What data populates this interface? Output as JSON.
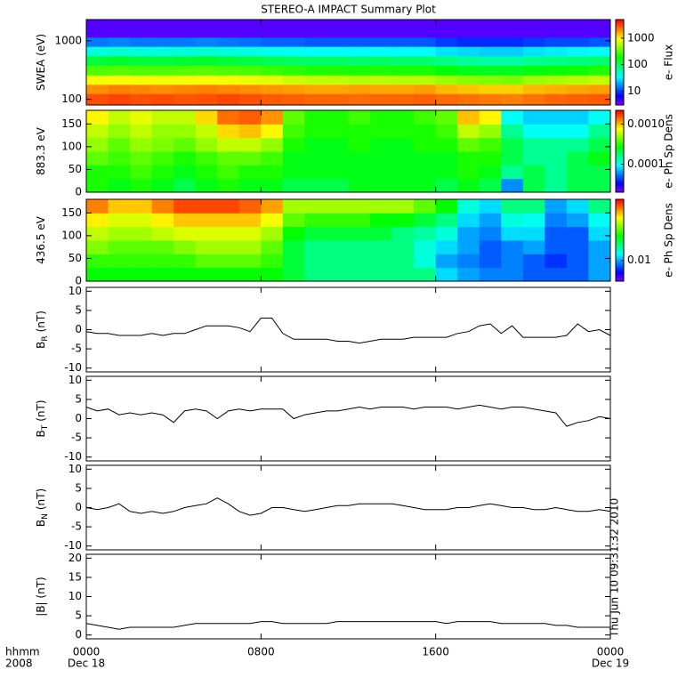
{
  "chart_data": [
    {
      "type": "heatmap",
      "title": "STEREO-A IMPACT Summary Plot",
      "ylabel": "SWEA (eV)",
      "yscale": "log",
      "ylim": [
        80,
        2300
      ],
      "yticks": [
        100,
        1000
      ],
      "xlim": [
        0,
        24
      ],
      "x_bins": [
        0,
        1,
        2,
        3,
        4,
        5,
        6,
        7,
        8,
        9,
        10,
        11,
        12,
        13,
        14,
        15,
        16,
        17,
        18,
        19,
        20,
        21,
        22,
        23,
        24
      ],
      "y_bins": [
        80,
        125,
        180,
        260,
        380,
        550,
        800,
        1150,
        2300
      ],
      "values": [
        [
          3000,
          3200,
          3000,
          3100,
          2900,
          3000,
          3200,
          3000,
          2800,
          2700,
          2600,
          2600,
          2500,
          2600,
          2600,
          2700,
          2500,
          2400,
          2300,
          2200,
          2400,
          2600,
          2700,
          2800
        ],
        [
          2000,
          2200,
          2100,
          2000,
          2100,
          2200,
          2100,
          2000,
          1900,
          1800,
          1700,
          1700,
          1800,
          1700,
          1700,
          1800,
          1500,
          1400,
          1300,
          1300,
          1500,
          1600,
          1700,
          1800
        ],
        [
          900,
          950,
          900,
          880,
          900,
          950,
          900,
          850,
          800,
          700,
          650,
          650,
          600,
          620,
          600,
          600,
          500,
          450,
          420,
          400,
          500,
          550,
          600,
          650
        ],
        [
          300,
          320,
          300,
          300,
          310,
          320,
          300,
          290,
          260,
          240,
          220,
          220,
          210,
          220,
          210,
          210,
          180,
          160,
          150,
          150,
          170,
          190,
          200,
          220
        ],
        [
          130,
          140,
          130,
          130,
          135,
          140,
          130,
          120,
          110,
          100,
          95,
          95,
          90,
          95,
          90,
          90,
          80,
          70,
          65,
          65,
          75,
          80,
          85,
          90
        ],
        [
          45,
          48,
          45,
          45,
          46,
          48,
          45,
          42,
          40,
          38,
          36,
          36,
          35,
          36,
          35,
          35,
          30,
          28,
          26,
          26,
          30,
          32,
          34,
          35
        ],
        [
          15,
          16,
          15,
          15,
          15,
          16,
          15,
          14,
          13,
          13,
          12,
          12,
          12,
          12,
          12,
          12,
          10,
          9,
          9,
          9,
          10,
          11,
          11,
          12
        ],
        [
          4,
          4,
          4,
          4,
          4,
          4,
          4,
          4,
          4,
          4,
          4,
          4,
          4,
          4,
          4,
          4,
          4,
          4,
          4,
          4,
          4,
          4,
          4,
          4
        ]
      ],
      "zscale": "log",
      "zlim": [
        3,
        5000
      ],
      "zticks": [
        10,
        100,
        1000
      ],
      "zlabel": "e- Flux",
      "colormap": "rainbow"
    },
    {
      "type": "heatmap",
      "ylabel": "883.3 eV",
      "yscale": "linear",
      "ylim": [
        0,
        180
      ],
      "yticks": [
        0,
        50,
        100,
        150
      ],
      "xlim": [
        0,
        24
      ],
      "x_bins": [
        0,
        1,
        2,
        3,
        4,
        5,
        6,
        7,
        8,
        9,
        10,
        11,
        12,
        13,
        14,
        15,
        16,
        17,
        18,
        19,
        20,
        21,
        22,
        23,
        24
      ],
      "y_bins": [
        0,
        30,
        60,
        90,
        120,
        150,
        180
      ],
      "values": [
        [
          0.0003,
          0.00025,
          0.0003,
          0.00025,
          0.0002,
          0.00025,
          0.0003,
          0.00025,
          0.00025,
          0.0002,
          0.0002,
          0.0002,
          0.00025,
          0.00025,
          0.00025,
          0.00025,
          0.0002,
          0.00025,
          0.0002,
          6e-05,
          0.0002,
          0.00015,
          0.0002,
          0.0002
        ],
        [
          0.0003,
          0.0003,
          0.00035,
          0.0003,
          0.00025,
          0.0003,
          0.00035,
          0.0003,
          0.0003,
          0.00025,
          0.00025,
          0.00025,
          0.00025,
          0.00025,
          0.00025,
          0.00025,
          0.00025,
          0.0003,
          0.00025,
          0.00015,
          0.0002,
          0.00015,
          0.0002,
          0.0002
        ],
        [
          0.0004,
          0.00035,
          0.0004,
          0.00035,
          0.0003,
          0.00035,
          0.0004,
          0.0004,
          0.00035,
          0.00025,
          0.00025,
          0.00025,
          0.00025,
          0.00025,
          0.00025,
          0.00025,
          0.00025,
          0.0003,
          0.0003,
          0.0002,
          0.00015,
          0.00015,
          0.0002,
          0.00025
        ],
        [
          0.0005,
          0.0004,
          0.0005,
          0.00045,
          0.0004,
          0.0005,
          0.0006,
          0.0006,
          0.0005,
          0.0003,
          0.00025,
          0.00025,
          0.0003,
          0.00025,
          0.00025,
          0.0003,
          0.0003,
          0.0004,
          0.00035,
          0.0002,
          0.00015,
          0.00015,
          0.00015,
          0.0002
        ],
        [
          0.0006,
          0.0005,
          0.0006,
          0.0005,
          0.0005,
          0.0006,
          0.0009,
          0.001,
          0.0008,
          0.00035,
          0.0003,
          0.0003,
          0.0003,
          0.0003,
          0.0003,
          0.0003,
          0.00035,
          0.0006,
          0.0005,
          0.00015,
          0.0001,
          0.0001,
          0.0001,
          0.00015
        ],
        [
          0.0008,
          0.0006,
          0.0007,
          0.0006,
          0.0006,
          0.0009,
          0.0014,
          0.0015,
          0.0012,
          0.0004,
          0.0003,
          0.0003,
          0.00035,
          0.0003,
          0.0003,
          0.00035,
          0.0004,
          0.001,
          0.0008,
          0.0001,
          8e-05,
          8e-05,
          8e-05,
          0.0001
        ]
      ],
      "zscale": "log",
      "zlim": [
        2e-05,
        0.0022
      ],
      "zticks": [
        {
          "value": 0.001,
          "label": "0.0010"
        },
        0.0001
      ],
      "zlabel": "e- Ph Sp Dens",
      "colormap": "rainbow"
    },
    {
      "type": "heatmap",
      "ylabel": "436.5 eV",
      "yscale": "linear",
      "ylim": [
        0,
        180
      ],
      "yticks": [
        0,
        50,
        100,
        150
      ],
      "xlim": [
        0,
        24
      ],
      "x_bins": [
        0,
        1,
        2,
        3,
        4,
        5,
        6,
        7,
        8,
        9,
        10,
        11,
        12,
        13,
        14,
        15,
        16,
        17,
        18,
        19,
        20,
        21,
        22,
        23,
        24
      ],
      "y_bins": [
        0,
        30,
        60,
        90,
        120,
        150,
        180
      ],
      "values": [
        [
          0.03,
          0.03,
          0.03,
          0.03,
          0.03,
          0.03,
          0.03,
          0.03,
          0.03,
          0.025,
          0.02,
          0.02,
          0.02,
          0.02,
          0.02,
          0.02,
          0.012,
          0.01,
          0.009,
          0.009,
          0.008,
          0.008,
          0.008,
          0.01
        ],
        [
          0.035,
          0.035,
          0.035,
          0.035,
          0.035,
          0.04,
          0.04,
          0.04,
          0.035,
          0.025,
          0.02,
          0.02,
          0.02,
          0.02,
          0.02,
          0.015,
          0.01,
          0.009,
          0.008,
          0.009,
          0.008,
          0.007,
          0.008,
          0.01
        ],
        [
          0.045,
          0.04,
          0.04,
          0.04,
          0.045,
          0.05,
          0.05,
          0.05,
          0.04,
          0.025,
          0.02,
          0.02,
          0.02,
          0.02,
          0.02,
          0.015,
          0.012,
          0.01,
          0.008,
          0.009,
          0.01,
          0.008,
          0.008,
          0.01
        ],
        [
          0.055,
          0.05,
          0.05,
          0.055,
          0.06,
          0.06,
          0.06,
          0.06,
          0.05,
          0.03,
          0.025,
          0.025,
          0.025,
          0.025,
          0.02,
          0.018,
          0.015,
          0.01,
          0.009,
          0.012,
          0.012,
          0.008,
          0.008,
          0.012
        ],
        [
          0.07,
          0.06,
          0.06,
          0.07,
          0.08,
          0.08,
          0.08,
          0.08,
          0.065,
          0.04,
          0.035,
          0.035,
          0.035,
          0.03,
          0.03,
          0.025,
          0.02,
          0.012,
          0.01,
          0.015,
          0.014,
          0.009,
          0.01,
          0.014
        ],
        [
          0.1,
          0.08,
          0.08,
          0.1,
          0.12,
          0.12,
          0.12,
          0.11,
          0.09,
          0.05,
          0.05,
          0.05,
          0.05,
          0.05,
          0.05,
          0.04,
          0.03,
          0.015,
          0.012,
          0.02,
          0.02,
          0.01,
          0.012,
          0.02
        ]
      ],
      "zscale": "log",
      "zlim": [
        0.004,
        0.15
      ],
      "zticks": [
        0.01
      ],
      "zlabel": "e- Ph Sp Dens",
      "colormap": "rainbow"
    },
    {
      "type": "line",
      "ylabel": "B",
      "ylabel_sub": "R",
      "ylabel_unit": "(nT)",
      "ylim": [
        -11,
        11
      ],
      "yticks": [
        -10,
        -5,
        0,
        5,
        10
      ],
      "xlim": [
        0,
        24
      ],
      "color": "#000000",
      "x": [
        0,
        0.5,
        1,
        1.5,
        2,
        2.5,
        3,
        3.5,
        4,
        4.5,
        5,
        5.5,
        6,
        6.5,
        7,
        7.5,
        8,
        8.5,
        9,
        9.5,
        10,
        10.5,
        11,
        11.5,
        12,
        12.5,
        13,
        13.5,
        14,
        14.5,
        15,
        15.5,
        16,
        16.5,
        17,
        17.5,
        18,
        18.5,
        19,
        19.5,
        20,
        20.5,
        21,
        21.5,
        22,
        22.5,
        23,
        23.5,
        24
      ],
      "values": [
        -0.5,
        -1,
        -1,
        -1.5,
        -1.5,
        -1.5,
        -1,
        -1.5,
        -1,
        -1,
        0,
        1,
        1,
        1,
        0.5,
        -0.5,
        3,
        3,
        -1,
        -2.5,
        -2.5,
        -2.5,
        -2.5,
        -3,
        -3,
        -3.5,
        -3,
        -2.5,
        -2.5,
        -2.5,
        -2,
        -2,
        -2,
        -2,
        -1,
        -0.5,
        1,
        1.5,
        -1,
        1,
        -2,
        -2,
        -2,
        -2,
        -1.5,
        1.5,
        -0.5,
        0,
        -1.5
      ]
    },
    {
      "type": "line",
      "ylabel": "B",
      "ylabel_sub": "T",
      "ylabel_unit": "(nT)",
      "ylim": [
        -11,
        11
      ],
      "yticks": [
        -10,
        -5,
        0,
        5,
        10
      ],
      "xlim": [
        0,
        24
      ],
      "color": "#000000",
      "x": [
        0,
        0.5,
        1,
        1.5,
        2,
        2.5,
        3,
        3.5,
        4,
        4.5,
        5,
        5.5,
        6,
        6.5,
        7,
        7.5,
        8,
        8.5,
        9,
        9.5,
        10,
        10.5,
        11,
        11.5,
        12,
        12.5,
        13,
        13.5,
        14,
        14.5,
        15,
        15.5,
        16,
        16.5,
        17,
        17.5,
        18,
        18.5,
        19,
        19.5,
        20,
        20.5,
        21,
        21.5,
        22,
        22.5,
        23,
        23.5,
        24
      ],
      "values": [
        3,
        2,
        2.5,
        1,
        1.5,
        1,
        1.5,
        1,
        -1,
        2,
        2.5,
        2,
        0,
        2,
        2.5,
        2,
        2.5,
        2.5,
        2.5,
        0,
        1,
        1.5,
        2,
        2,
        2.5,
        3,
        2.5,
        3,
        3,
        3,
        2.5,
        3,
        3,
        3,
        2.5,
        3,
        3.5,
        3,
        2.5,
        3,
        3,
        2.5,
        2,
        1.5,
        -2,
        -1,
        -0.5,
        0.5,
        0
      ]
    },
    {
      "type": "line",
      "ylabel": "B",
      "ylabel_sub": "N",
      "ylabel_unit": "(nT)",
      "ylim": [
        -11,
        11
      ],
      "yticks": [
        -10,
        -5,
        0,
        5,
        10
      ],
      "xlim": [
        0,
        24
      ],
      "color": "#000000",
      "x": [
        0,
        0.5,
        1,
        1.5,
        2,
        2.5,
        3,
        3.5,
        4,
        4.5,
        5,
        5.5,
        6,
        6.5,
        7,
        7.5,
        8,
        8.5,
        9,
        9.5,
        10,
        10.5,
        11,
        11.5,
        12,
        12.5,
        13,
        13.5,
        14,
        14.5,
        15,
        15.5,
        16,
        16.5,
        17,
        17.5,
        18,
        18.5,
        19,
        19.5,
        20,
        20.5,
        21,
        21.5,
        22,
        22.5,
        23,
        23.5,
        24
      ],
      "values": [
        0,
        -0.5,
        0,
        1,
        -1,
        -1.5,
        -1,
        -1.5,
        -1,
        0,
        0.5,
        1,
        2.5,
        1,
        -1,
        -2,
        -1.5,
        0,
        0,
        -0.5,
        -1,
        -0.5,
        0,
        0.5,
        0.5,
        1,
        1,
        1,
        1,
        0.5,
        0,
        -0.5,
        -0.5,
        -0.5,
        0,
        0,
        0.5,
        1,
        0.5,
        0,
        0,
        -0.5,
        -0.5,
        0,
        -0.5,
        -1,
        -1,
        -0.5,
        -1
      ]
    },
    {
      "type": "line",
      "ylabel": "|B| (nT)",
      "ylim": [
        -1,
        21
      ],
      "yticks": [
        0,
        5,
        10,
        15,
        20
      ],
      "xlim": [
        0,
        24
      ],
      "color": "#000000",
      "x": [
        0,
        0.5,
        1,
        1.5,
        2,
        2.5,
        3,
        3.5,
        4,
        4.5,
        5,
        5.5,
        6,
        6.5,
        7,
        7.5,
        8,
        8.5,
        9,
        9.5,
        10,
        10.5,
        11,
        11.5,
        12,
        12.5,
        13,
        13.5,
        14,
        14.5,
        15,
        15.5,
        16,
        16.5,
        17,
        17.5,
        18,
        18.5,
        19,
        19.5,
        20,
        20.5,
        21,
        21.5,
        22,
        22.5,
        23,
        23.5,
        24
      ],
      "values": [
        3,
        2.5,
        2,
        1.5,
        2,
        2,
        2,
        2,
        2,
        2.5,
        3,
        3,
        3,
        3,
        3,
        3,
        3.5,
        3.5,
        3,
        3,
        3,
        3,
        3,
        3.5,
        3.5,
        3.5,
        3.5,
        3.5,
        3.5,
        3.5,
        3.5,
        3.5,
        3.5,
        3,
        3.5,
        3.5,
        3.5,
        3.5,
        3,
        3,
        3,
        3,
        3,
        2.5,
        2.5,
        2,
        2,
        2,
        2
      ],
      "xticks": [
        {
          "value": 0,
          "label": "0000"
        },
        {
          "value": 8,
          "label": "0800"
        },
        {
          "value": 16,
          "label": "1600"
        },
        {
          "value": 24,
          "label": "0000"
        }
      ],
      "date_labels": [
        {
          "value": 0,
          "label": "Dec 18"
        },
        {
          "value": 24,
          "label": "Dec 19"
        }
      ],
      "xlabel": [
        "hhmm",
        "2008"
      ],
      "annotation": "Thu Jun 10 09:31:32 2010"
    }
  ]
}
